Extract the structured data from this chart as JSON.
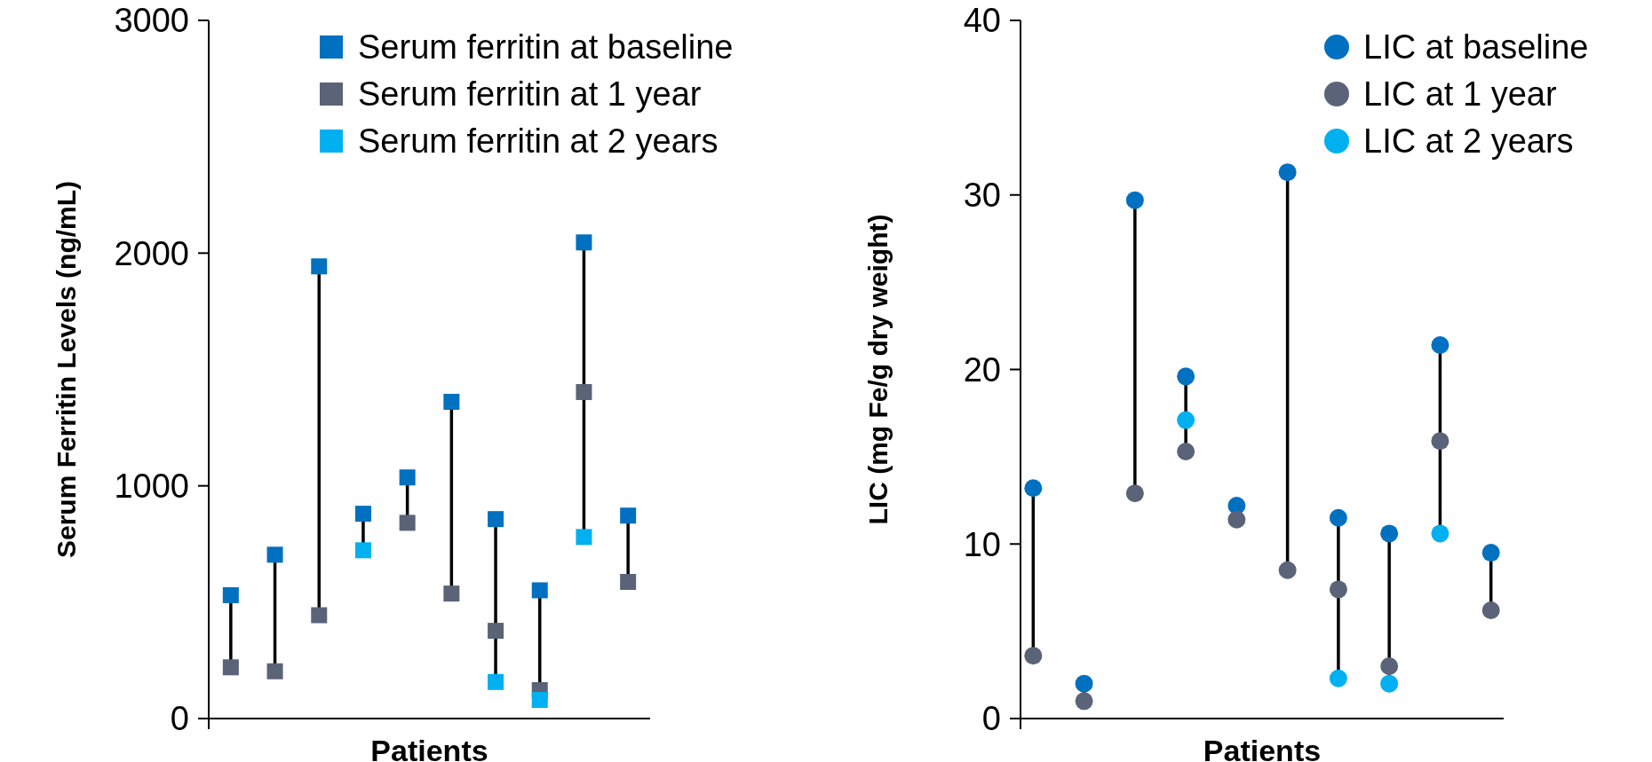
{
  "chart_data": [
    {
      "type": "scatter",
      "xlabel": "Patients",
      "ylabel": "Serum Ferritin Levels (ng/mL)",
      "categories": [
        null,
        null,
        null,
        null,
        null,
        null,
        null,
        null,
        null,
        null
      ],
      "ylim": [
        0,
        3000
      ],
      "yticks": [
        0,
        1000,
        2000,
        3000
      ],
      "marker": "square",
      "legend": "top right",
      "grid": false,
      "series": [
        {
          "name": "Serum ferritin at baseline",
          "color": "#0070c0",
          "values": [
            530,
            704,
            1943,
            880,
            1036,
            1361,
            857,
            551,
            2046,
            872
          ]
        },
        {
          "name": "Serum ferritin at 1 year",
          "color": "#5b6378",
          "values": [
            220,
            203,
            444,
            null,
            841,
            537,
            377,
            122,
            1403,
            587
          ]
        },
        {
          "name": "Serum ferritin at 2 years",
          "color": "#00b0f0",
          "values": [
            null,
            null,
            null,
            723,
            null,
            null,
            157,
            80,
            780,
            null
          ]
        }
      ]
    },
    {
      "type": "scatter",
      "xlabel": "Patients",
      "ylabel": "LIC (mg Fe/g dry weight)",
      "categories": [
        null,
        null,
        null,
        null,
        null,
        null,
        null,
        null,
        null,
        null
      ],
      "ylim": [
        0,
        40
      ],
      "yticks": [
        0,
        10,
        20,
        30,
        40
      ],
      "marker": "circle",
      "legend": "top right",
      "grid": false,
      "series": [
        {
          "name": "LIC at baseline",
          "color": "#0070c0",
          "values": [
            13.2,
            2.0,
            29.7,
            19.6,
            12.2,
            31.3,
            11.5,
            10.6,
            21.4,
            9.5
          ]
        },
        {
          "name": "LIC at 1 year",
          "color": "#5b6378",
          "values": [
            3.6,
            1.0,
            12.9,
            15.3,
            11.4,
            8.5,
            7.4,
            3.0,
            15.9,
            6.2
          ]
        },
        {
          "name": "LIC at 2 years",
          "color": "#00b0f0",
          "values": [
            null,
            null,
            null,
            17.1,
            null,
            null,
            2.3,
            2.0,
            10.6,
            null
          ]
        }
      ]
    }
  ]
}
